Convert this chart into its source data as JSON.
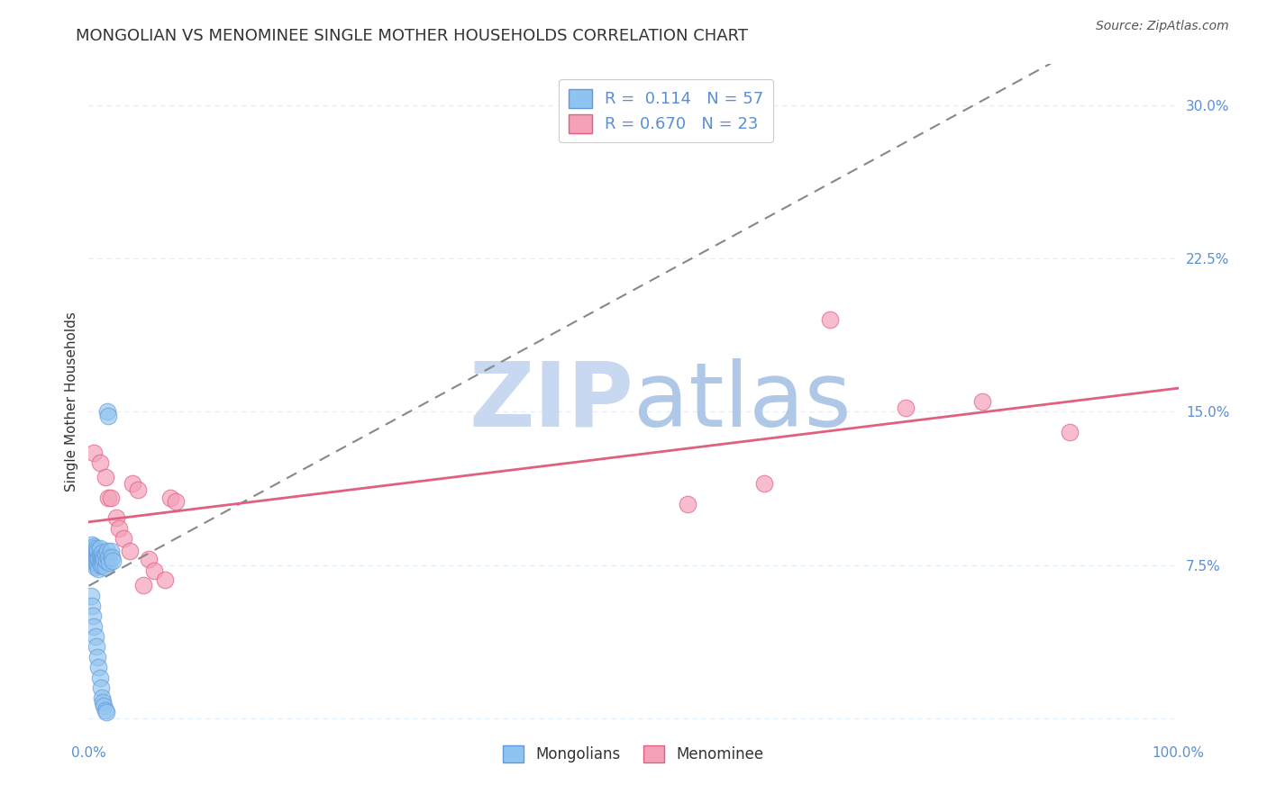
{
  "title": "MONGOLIAN VS MENOMINEE SINGLE MOTHER HOUSEHOLDS CORRELATION CHART",
  "source": "Source: ZipAtlas.com",
  "ylabel": "Single Mother Households",
  "xlim": [
    0.0,
    1.0
  ],
  "ylim": [
    -0.01,
    0.32
  ],
  "x_ticks": [
    0.0,
    0.1,
    0.2,
    0.3,
    0.4,
    0.5,
    0.6,
    0.7,
    0.8,
    0.9,
    1.0
  ],
  "x_tick_labels": [
    "0.0%",
    "",
    "",
    "",
    "",
    "",
    "",
    "",
    "",
    "",
    "100.0%"
  ],
  "y_ticks": [
    0.0,
    0.075,
    0.15,
    0.225,
    0.3
  ],
  "y_tick_labels": [
    "",
    "7.5%",
    "15.0%",
    "22.5%",
    "30.0%"
  ],
  "mongolians_R": "0.114",
  "mongolians_N": "57",
  "menominee_R": "0.670",
  "menominee_N": "23",
  "mongolian_color": "#90C4F0",
  "menominee_color": "#F4A0B8",
  "mongolian_line_color": "#6098D8",
  "menominee_line_color": "#E06080",
  "tick_color": "#5B8FD4",
  "watermark_zip_color": "#C8D8F0",
  "watermark_atlas_color": "#B0C8E8",
  "grid_color": "#DDEEFF",
  "mongolians_x": [
    0.002,
    0.003,
    0.003,
    0.003,
    0.004,
    0.004,
    0.004,
    0.005,
    0.005,
    0.005,
    0.006,
    0.006,
    0.006,
    0.007,
    0.007,
    0.007,
    0.008,
    0.008,
    0.008,
    0.009,
    0.009,
    0.01,
    0.01,
    0.01,
    0.011,
    0.011,
    0.012,
    0.012,
    0.013,
    0.013,
    0.014,
    0.015,
    0.015,
    0.016,
    0.017,
    0.018,
    0.019,
    0.02,
    0.021,
    0.022,
    0.002,
    0.003,
    0.004,
    0.005,
    0.006,
    0.007,
    0.008,
    0.009,
    0.01,
    0.011,
    0.012,
    0.013,
    0.014,
    0.015,
    0.016,
    0.017,
    0.018
  ],
  "mongolians_y": [
    0.082,
    0.08,
    0.085,
    0.078,
    0.079,
    0.083,
    0.077,
    0.081,
    0.076,
    0.084,
    0.078,
    0.082,
    0.074,
    0.08,
    0.076,
    0.083,
    0.079,
    0.075,
    0.082,
    0.078,
    0.073,
    0.08,
    0.076,
    0.083,
    0.079,
    0.075,
    0.081,
    0.077,
    0.079,
    0.075,
    0.078,
    0.074,
    0.08,
    0.077,
    0.082,
    0.079,
    0.076,
    0.082,
    0.079,
    0.077,
    0.06,
    0.055,
    0.05,
    0.045,
    0.04,
    0.035,
    0.03,
    0.025,
    0.02,
    0.015,
    0.01,
    0.008,
    0.006,
    0.004,
    0.003,
    0.15,
    0.148
  ],
  "menominee_x": [
    0.005,
    0.01,
    0.015,
    0.018,
    0.02,
    0.025,
    0.028,
    0.032,
    0.038,
    0.04,
    0.045,
    0.05,
    0.055,
    0.06,
    0.07,
    0.075,
    0.08,
    0.55,
    0.62,
    0.68,
    0.75,
    0.82,
    0.9
  ],
  "menominee_y": [
    0.13,
    0.125,
    0.118,
    0.108,
    0.108,
    0.098,
    0.093,
    0.088,
    0.082,
    0.115,
    0.112,
    0.065,
    0.078,
    0.072,
    0.068,
    0.108,
    0.106,
    0.105,
    0.115,
    0.195,
    0.152,
    0.155,
    0.14
  ],
  "title_fontsize": 13,
  "axis_fontsize": 11,
  "tick_fontsize": 11,
  "source_fontsize": 10
}
